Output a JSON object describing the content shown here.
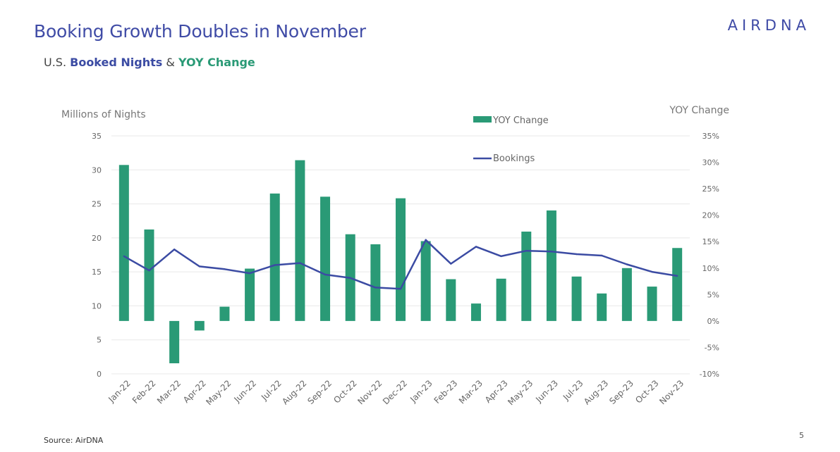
{
  "header": {
    "title": "Booking Growth Doubles in November",
    "subtitle_prefix": "U.S. ",
    "subtitle_blue": "Booked Nights",
    "subtitle_amp": " & ",
    "subtitle_green": "YOY Change",
    "logo_text": "AIRDNA"
  },
  "footer": {
    "source": "Source: AirDNA",
    "page_number": "5"
  },
  "colors": {
    "bar": "#2a9a76",
    "line": "#3b4ba3",
    "grid": "#e8e8e8",
    "tick": "#666666"
  },
  "chart_data": {
    "type": "bar",
    "title": "U.S. Booked Nights & YOY Change",
    "left_axis_label": "Millions of Nights",
    "right_axis_label": "YOY Change",
    "left_ylim": [
      0,
      35
    ],
    "right_ylim": [
      -10,
      35
    ],
    "left_ticks": [
      "0",
      "5",
      "10",
      "15",
      "20",
      "25",
      "30",
      "35"
    ],
    "right_ticks": [
      "-10%",
      "-5%",
      "0%",
      "5%",
      "10%",
      "15%",
      "20%",
      "25%",
      "30%",
      "35%"
    ],
    "legend_bar": "YOY Change",
    "legend_line": "Bookings",
    "categories": [
      "Jan-22",
      "Feb-22",
      "Mar-22",
      "Apr-22",
      "May-22",
      "Jun-22",
      "Jul-22",
      "Aug-22",
      "Sep-22",
      "Oct-22",
      "Nov-22",
      "Dec-22",
      "Jan-23",
      "Feb-23",
      "Mar-23",
      "Apr-23",
      "May-23",
      "Jun-23",
      "Jul-23",
      "Aug-23",
      "Sep-23",
      "Oct-23",
      "Nov-23"
    ],
    "series": [
      {
        "name": "YOY Change",
        "type": "bar",
        "axis": "right",
        "values": [
          29.5,
          17.3,
          -8.0,
          -1.8,
          2.7,
          9.9,
          24.1,
          30.4,
          23.5,
          16.4,
          14.5,
          23.2,
          15.1,
          7.9,
          3.3,
          8.0,
          16.9,
          20.9,
          8.4,
          5.2,
          10.0,
          6.5,
          13.8
        ]
      },
      {
        "name": "Bookings",
        "type": "line",
        "axis": "left",
        "values": [
          17.3,
          15.2,
          18.3,
          15.8,
          15.4,
          14.8,
          16.0,
          16.3,
          14.6,
          14.1,
          12.7,
          12.5,
          19.7,
          16.2,
          18.7,
          17.3,
          18.1,
          18.0,
          17.6,
          17.4,
          16.1,
          15.0,
          14.4
        ]
      }
    ]
  }
}
